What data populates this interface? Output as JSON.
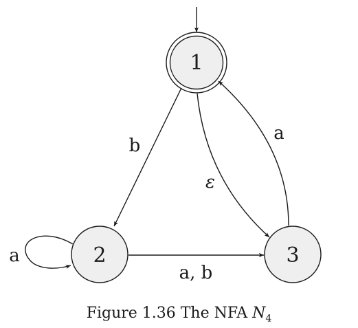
{
  "diagram": {
    "states": [
      {
        "id": "1",
        "label": "1",
        "accepting": true,
        "start": true
      },
      {
        "id": "2",
        "label": "2",
        "accepting": false,
        "start": false
      },
      {
        "id": "3",
        "label": "3",
        "accepting": false,
        "start": false
      }
    ],
    "transitions": [
      {
        "from": "1",
        "to": "2",
        "label": "b"
      },
      {
        "from": "1",
        "to": "3",
        "label": "ε"
      },
      {
        "from": "3",
        "to": "1",
        "label": "a"
      },
      {
        "from": "2",
        "to": "3",
        "label": "a, b"
      },
      {
        "from": "2",
        "to": "2",
        "label": "a"
      }
    ]
  },
  "caption": {
    "prefix": "Figure 1.36  The NFA ",
    "symbol": "N",
    "subscript": "4"
  }
}
